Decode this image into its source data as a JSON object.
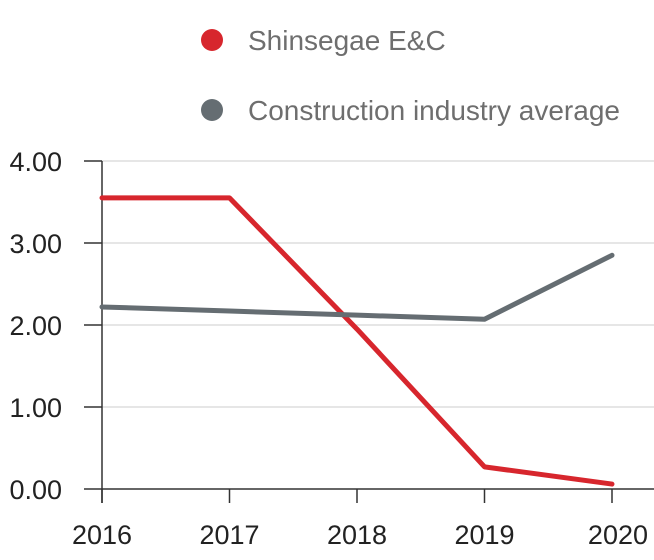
{
  "chart_data": {
    "type": "line",
    "x": [
      "2016",
      "2017",
      "2018",
      "2019",
      "2020"
    ],
    "series": [
      {
        "name": "Shinsegae E&C",
        "color": "#d7262d",
        "values": [
          3.55,
          3.55,
          1.95,
          0.27,
          0.06
        ]
      },
      {
        "name": "Construction industry average",
        "color": "#656d72",
        "values": [
          2.22,
          2.17,
          2.12,
          2.07,
          2.85
        ]
      }
    ],
    "yticks": [
      "0.00",
      "1.00",
      "2.00",
      "3.00",
      "4.00"
    ],
    "ylim": [
      0,
      4
    ],
    "grid": true,
    "legend_position": "top-right",
    "title": "",
    "xlabel": "",
    "ylabel": ""
  }
}
